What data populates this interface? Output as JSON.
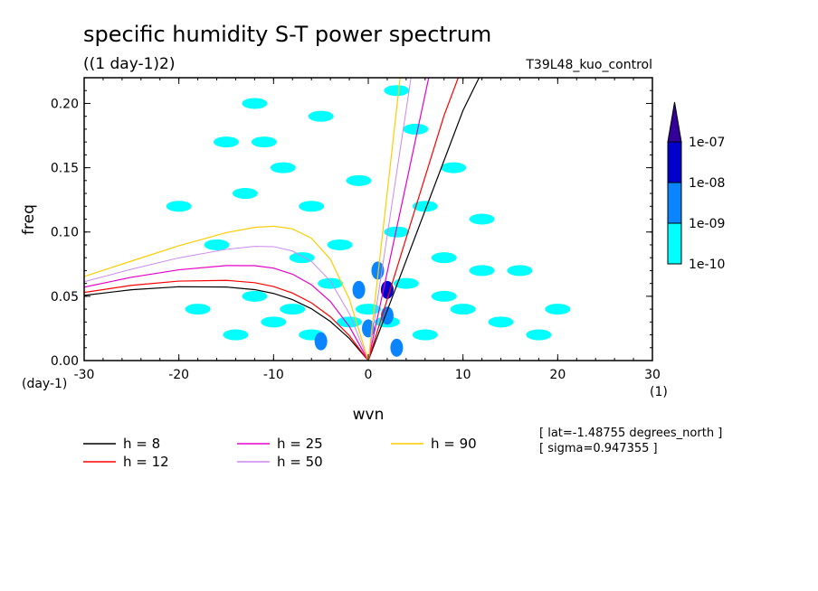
{
  "chart_data": {
    "type": "heatmap",
    "title": "specific humidity S-T power spectrum",
    "subtitle": "((1 day-1)2)",
    "run_label": "T39L48_kuo_control",
    "xlabel": "wvn",
    "ylabel": "freq",
    "x_unit": "(1)",
    "y_unit": "(day-1)",
    "xlim": [
      -30,
      30
    ],
    "ylim": [
      0,
      0.22
    ],
    "x_ticks": [
      -30,
      -20,
      -10,
      0,
      10,
      20,
      30
    ],
    "x_tick_labels": [
      "-30",
      "-20",
      "-10",
      "0",
      "10",
      "20",
      "30"
    ],
    "y_ticks": [
      0,
      0.05,
      0.1,
      0.15,
      0.2
    ],
    "y_tick_labels": [
      "0.00",
      "0.05",
      "0.10",
      "0.15",
      "0.20"
    ],
    "grid": false,
    "colorbar": {
      "levels": [
        "1e-10",
        "1e-09",
        "1e-08",
        "1e-07"
      ],
      "colors": [
        "#00ffff",
        "#0a84ff",
        "#0000cc",
        "#330099"
      ],
      "extend": "max"
    },
    "contour_blobs": [
      {
        "x": 0,
        "y": 0.04,
        "level": 0
      },
      {
        "x": -2,
        "y": 0.03,
        "level": 0
      },
      {
        "x": 2,
        "y": 0.03,
        "level": 0
      },
      {
        "x": -4,
        "y": 0.06,
        "level": 0
      },
      {
        "x": 4,
        "y": 0.06,
        "level": 0
      },
      {
        "x": -6,
        "y": 0.02,
        "level": 0
      },
      {
        "x": 6,
        "y": 0.02,
        "level": 0
      },
      {
        "x": -8,
        "y": 0.04,
        "level": 0
      },
      {
        "x": 8,
        "y": 0.05,
        "level": 0
      },
      {
        "x": -10,
        "y": 0.03,
        "level": 0
      },
      {
        "x": 10,
        "y": 0.04,
        "level": 0
      },
      {
        "x": -12,
        "y": 0.05,
        "level": 0
      },
      {
        "x": 12,
        "y": 0.07,
        "level": 0
      },
      {
        "x": -14,
        "y": 0.02,
        "level": 0
      },
      {
        "x": 14,
        "y": 0.03,
        "level": 0
      },
      {
        "x": -3,
        "y": 0.09,
        "level": 0
      },
      {
        "x": 3,
        "y": 0.1,
        "level": 0
      },
      {
        "x": -6,
        "y": 0.12,
        "level": 0
      },
      {
        "x": 6,
        "y": 0.12,
        "level": 0
      },
      {
        "x": -1,
        "y": 0.14,
        "level": 0
      },
      {
        "x": -9,
        "y": 0.15,
        "level": 0
      },
      {
        "x": 9,
        "y": 0.15,
        "level": 0
      },
      {
        "x": -13,
        "y": 0.13,
        "level": 0
      },
      {
        "x": 12,
        "y": 0.11,
        "level": 0
      },
      {
        "x": -16,
        "y": 0.09,
        "level": 0
      },
      {
        "x": 16,
        "y": 0.07,
        "level": 0
      },
      {
        "x": -18,
        "y": 0.04,
        "level": 0
      },
      {
        "x": 18,
        "y": 0.02,
        "level": 0
      },
      {
        "x": -11,
        "y": 0.17,
        "level": 0
      },
      {
        "x": 5,
        "y": 0.18,
        "level": 0
      },
      {
        "x": -5,
        "y": 0.19,
        "level": 0
      },
      {
        "x": -15,
        "y": 0.17,
        "level": 0
      },
      {
        "x": -20,
        "y": 0.12,
        "level": 0
      },
      {
        "x": 3,
        "y": 0.21,
        "level": 0
      },
      {
        "x": -12,
        "y": 0.2,
        "level": 0
      },
      {
        "x": 8,
        "y": 0.08,
        "level": 0
      },
      {
        "x": 20,
        "y": 0.04,
        "level": 0
      },
      {
        "x": -7,
        "y": 0.08,
        "level": 0
      },
      {
        "x": 0,
        "y": 0.025,
        "level": 1
      },
      {
        "x": 1,
        "y": 0.07,
        "level": 1
      },
      {
        "x": 2,
        "y": 0.035,
        "level": 1
      },
      {
        "x": -1,
        "y": 0.055,
        "level": 1
      },
      {
        "x": -5,
        "y": 0.015,
        "level": 1
      },
      {
        "x": 3,
        "y": 0.01,
        "level": 1
      },
      {
        "x": 2,
        "y": 0.055,
        "level": 2
      }
    ],
    "series": [
      {
        "name": "h =  8",
        "color": "#000000",
        "width": 1.2,
        "x": [
          -30,
          -25,
          -20,
          -15,
          -12,
          -10,
          -8,
          -6,
          -4,
          -2,
          0,
          2,
          4,
          6,
          8,
          10,
          11.7
        ],
        "y": [
          0.0507,
          0.0551,
          0.0574,
          0.0572,
          0.0552,
          0.0522,
          0.0474,
          0.0403,
          0.0304,
          0.0172,
          0,
          0.0389,
          0.0778,
          0.1167,
          0.1556,
          0.1945,
          0.22
        ]
      },
      {
        "name": "h = 12",
        "color": "#ff0000",
        "width": 1.2,
        "x": [
          -30,
          -25,
          -20,
          -15,
          -12,
          -10,
          -8,
          -6,
          -4,
          -2,
          0,
          2,
          4,
          6,
          8,
          9.5
        ],
        "y": [
          0.053,
          0.0585,
          0.0618,
          0.0624,
          0.0606,
          0.0576,
          0.0525,
          0.0449,
          0.0341,
          0.0194,
          0,
          0.0476,
          0.0953,
          0.1429,
          0.1906,
          0.22
        ]
      },
      {
        "name": "h = 25",
        "color": "#e600cc",
        "width": 1.2,
        "x": [
          -30,
          -25,
          -20,
          -15,
          -12,
          -10,
          -8,
          -6,
          -4,
          -2,
          0,
          2,
          4,
          6.38
        ],
        "y": [
          0.0571,
          0.0648,
          0.0706,
          0.0739,
          0.0738,
          0.0719,
          0.0672,
          0.059,
          0.0459,
          0.0265,
          0,
          0.0688,
          0.1375,
          0.22
        ]
      },
      {
        "name": "h = 50",
        "color": "#cc88ee",
        "width": 1.0,
        "x": [
          -30,
          -25,
          -20,
          -15,
          -12,
          -10,
          -8,
          -6,
          -4,
          -2,
          0,
          2,
          4.51
        ],
        "y": [
          0.0613,
          0.0711,
          0.0799,
          0.0865,
          0.0888,
          0.0886,
          0.0852,
          0.0771,
          0.0618,
          0.0366,
          0,
          0.0973,
          0.22
        ]
      },
      {
        "name": "h = 90",
        "color": "#ffcc00",
        "width": 1.2,
        "x": [
          -30,
          -25,
          -20,
          -15,
          -12,
          -10,
          -8,
          -6,
          -4,
          -2,
          0,
          1,
          2,
          3.36
        ],
        "y": [
          0.0654,
          0.0774,
          0.0893,
          0.0995,
          0.1036,
          0.1045,
          0.1024,
          0.0952,
          0.0788,
          0.0478,
          0,
          0.0654,
          0.1307,
          0.22
        ]
      }
    ],
    "legend": [
      "h =  8",
      "h = 12",
      "h = 25",
      "h = 50",
      "h = 90"
    ],
    "legend_placement": "bottom-left",
    "annotations": [
      "[ lat=-1.48755 degrees_north ]",
      "[ sigma=0.947355 ]"
    ]
  }
}
